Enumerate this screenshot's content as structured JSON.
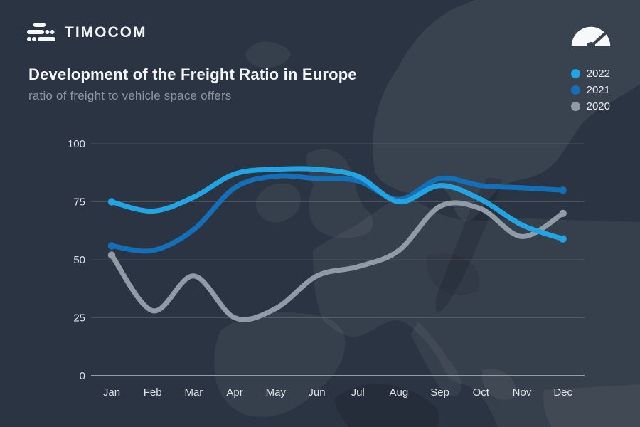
{
  "brand": {
    "logo_text": "TIMOCOM",
    "logo_icon": "timocom-truck-logo-icon"
  },
  "header": {
    "title": "Development of the Freight Ratio in Europe",
    "subtitle": "ratio of freight to vehicle space offers",
    "gauge_icon": "speedometer-gauge-icon"
  },
  "colors": {
    "background": "#2b3442",
    "title": "#f3f5f7",
    "subtitle": "#8c95a3",
    "tick_label": "#dde2e8",
    "grid": "rgba(255,255,255,0.14)",
    "axis_zero": "#959ca6",
    "series_2022": "#22a3e2",
    "series_2021": "#1370b8",
    "series_2020": "#919aa7",
    "logo_and_gauge": "#f6f8fa"
  },
  "chart_data": {
    "type": "line",
    "title": "Development of the Freight Ratio in Europe",
    "subtitle": "ratio of freight to vehicle space offers",
    "categories": [
      "Jan",
      "Feb",
      "Mar",
      "Apr",
      "May",
      "Jun",
      "Jul",
      "Aug",
      "Sep",
      "Oct",
      "Nov",
      "Dec"
    ],
    "series": [
      {
        "name": "2022",
        "color": "#22a3e2",
        "values": [
          75,
          71,
          77,
          87,
          89,
          89,
          86,
          75,
          82,
          76,
          65,
          59
        ]
      },
      {
        "name": "2021",
        "color": "#1370b8",
        "values": [
          56,
          54,
          63,
          81,
          86,
          85,
          84,
          76,
          85,
          82,
          81,
          80
        ]
      },
      {
        "name": "2020",
        "color": "#919aa7",
        "values": [
          52,
          28,
          43,
          25,
          29,
          43,
          47,
          54,
          73,
          72,
          60,
          70
        ]
      }
    ],
    "xlabel": "",
    "ylabel": "",
    "ylim": [
      0,
      100
    ],
    "yticks": [
      0,
      25,
      50,
      75,
      100
    ],
    "grid": true,
    "legend_position": "top-right",
    "line_style": "smooth"
  }
}
